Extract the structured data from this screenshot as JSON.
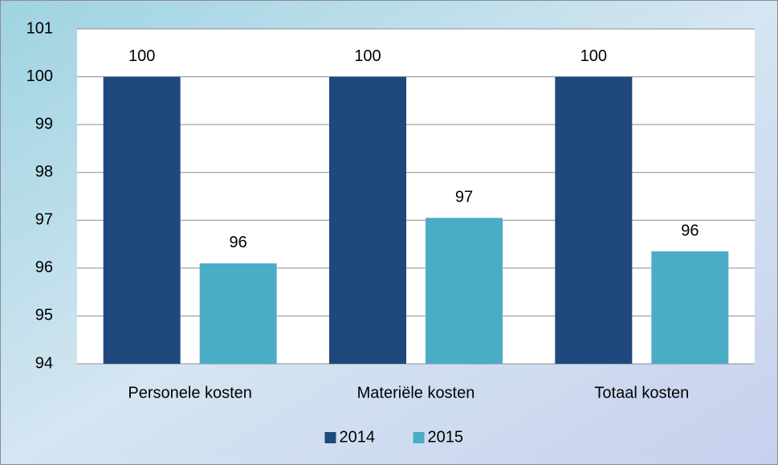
{
  "chart_data": {
    "type": "bar",
    "categories": [
      "Personele kosten",
      "Materiële kosten",
      "Totaal kosten"
    ],
    "series": [
      {
        "name": "2014",
        "color": "#1f497d",
        "values": [
          100,
          100,
          100
        ]
      },
      {
        "name": "2015",
        "color": "#4bacc6",
        "values": [
          96.1,
          97.05,
          96.35
        ],
        "value_labels": [
          "96",
          "97",
          "96"
        ]
      }
    ],
    "ylim": [
      94,
      101
    ],
    "yticks": [
      94,
      95,
      96,
      97,
      98,
      99,
      100,
      101
    ],
    "grid": true,
    "legend": "bottom"
  }
}
